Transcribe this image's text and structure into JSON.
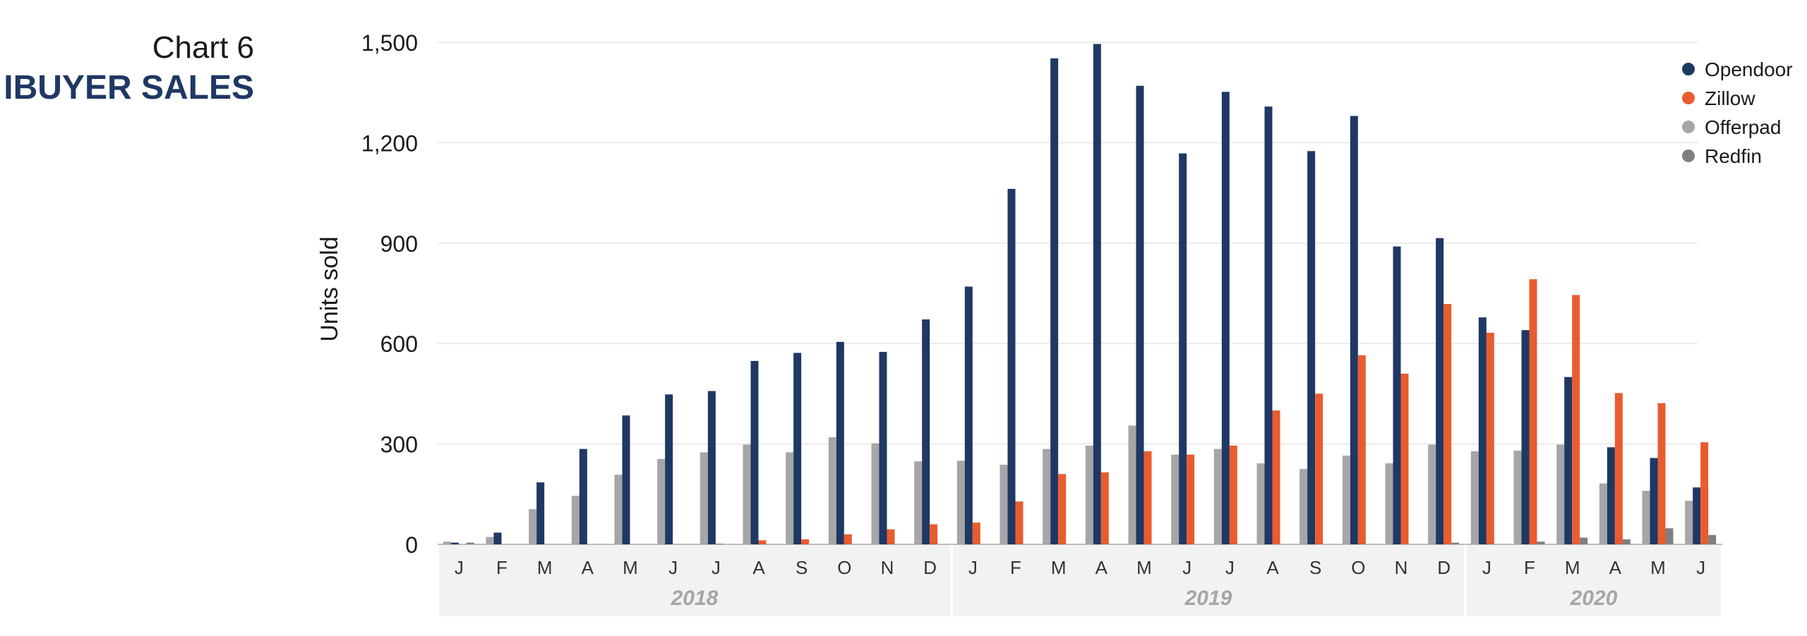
{
  "header": {
    "chart_number": "Chart 6",
    "title": "IBUYER SALES"
  },
  "chart_data": {
    "type": "bar",
    "title": "IBUYER SALES",
    "ylabel": "Units sold",
    "xlabel": "",
    "ylim": [
      0,
      1500
    ],
    "yticks": [
      0,
      300,
      600,
      900,
      1200,
      1500
    ],
    "ytick_labels": [
      "0",
      "300",
      "600",
      "900",
      "1,200",
      "1,500"
    ],
    "grid": true,
    "legend_position": "top-right",
    "categories": [
      "J",
      "F",
      "M",
      "A",
      "M",
      "J",
      "J",
      "A",
      "S",
      "O",
      "N",
      "D",
      "J",
      "F",
      "M",
      "A",
      "M",
      "J",
      "J",
      "A",
      "S",
      "O",
      "N",
      "D",
      "J",
      "F",
      "M",
      "A",
      "M",
      "J"
    ],
    "year_groups": [
      {
        "label": "2018",
        "start": 0,
        "count": 12
      },
      {
        "label": "2019",
        "start": 12,
        "count": 12
      },
      {
        "label": "2020",
        "start": 24,
        "count": 6
      }
    ],
    "series": [
      {
        "name": "Offerpad",
        "color": "#a6a6a6",
        "values": [
          8,
          22,
          105,
          145,
          208,
          255,
          275,
          298,
          275,
          320,
          302,
          248,
          250,
          238,
          285,
          295,
          355,
          268,
          285,
          242,
          225,
          265,
          242,
          298,
          278,
          280,
          298,
          182,
          160,
          130
        ]
      },
      {
        "name": "Opendoor",
        "color": "#1f3864",
        "values": [
          5,
          35,
          185,
          285,
          385,
          448,
          458,
          548,
          572,
          605,
          575,
          672,
          770,
          1062,
          1452,
          1495,
          1370,
          1168,
          1352,
          1308,
          1175,
          1280,
          890,
          915,
          678,
          640,
          500,
          290,
          258,
          170
        ]
      },
      {
        "name": "Zillow",
        "color": "#e85c2f",
        "values": [
          0,
          0,
          0,
          0,
          0,
          0,
          2,
          12,
          15,
          30,
          45,
          60,
          65,
          128,
          210,
          215,
          278,
          268,
          295,
          400,
          450,
          565,
          510,
          718,
          632,
          792,
          745,
          452,
          422,
          305
        ]
      },
      {
        "name": "Redfin",
        "color": "#7f7f7f",
        "values": [
          5,
          0,
          0,
          0,
          0,
          0,
          0,
          0,
          0,
          0,
          0,
          0,
          0,
          0,
          0,
          0,
          0,
          0,
          0,
          0,
          0,
          0,
          0,
          5,
          0,
          8,
          20,
          15,
          48,
          28
        ]
      }
    ],
    "legend_order": [
      "Opendoor",
      "Zillow",
      "Offerpad",
      "Redfin"
    ]
  }
}
